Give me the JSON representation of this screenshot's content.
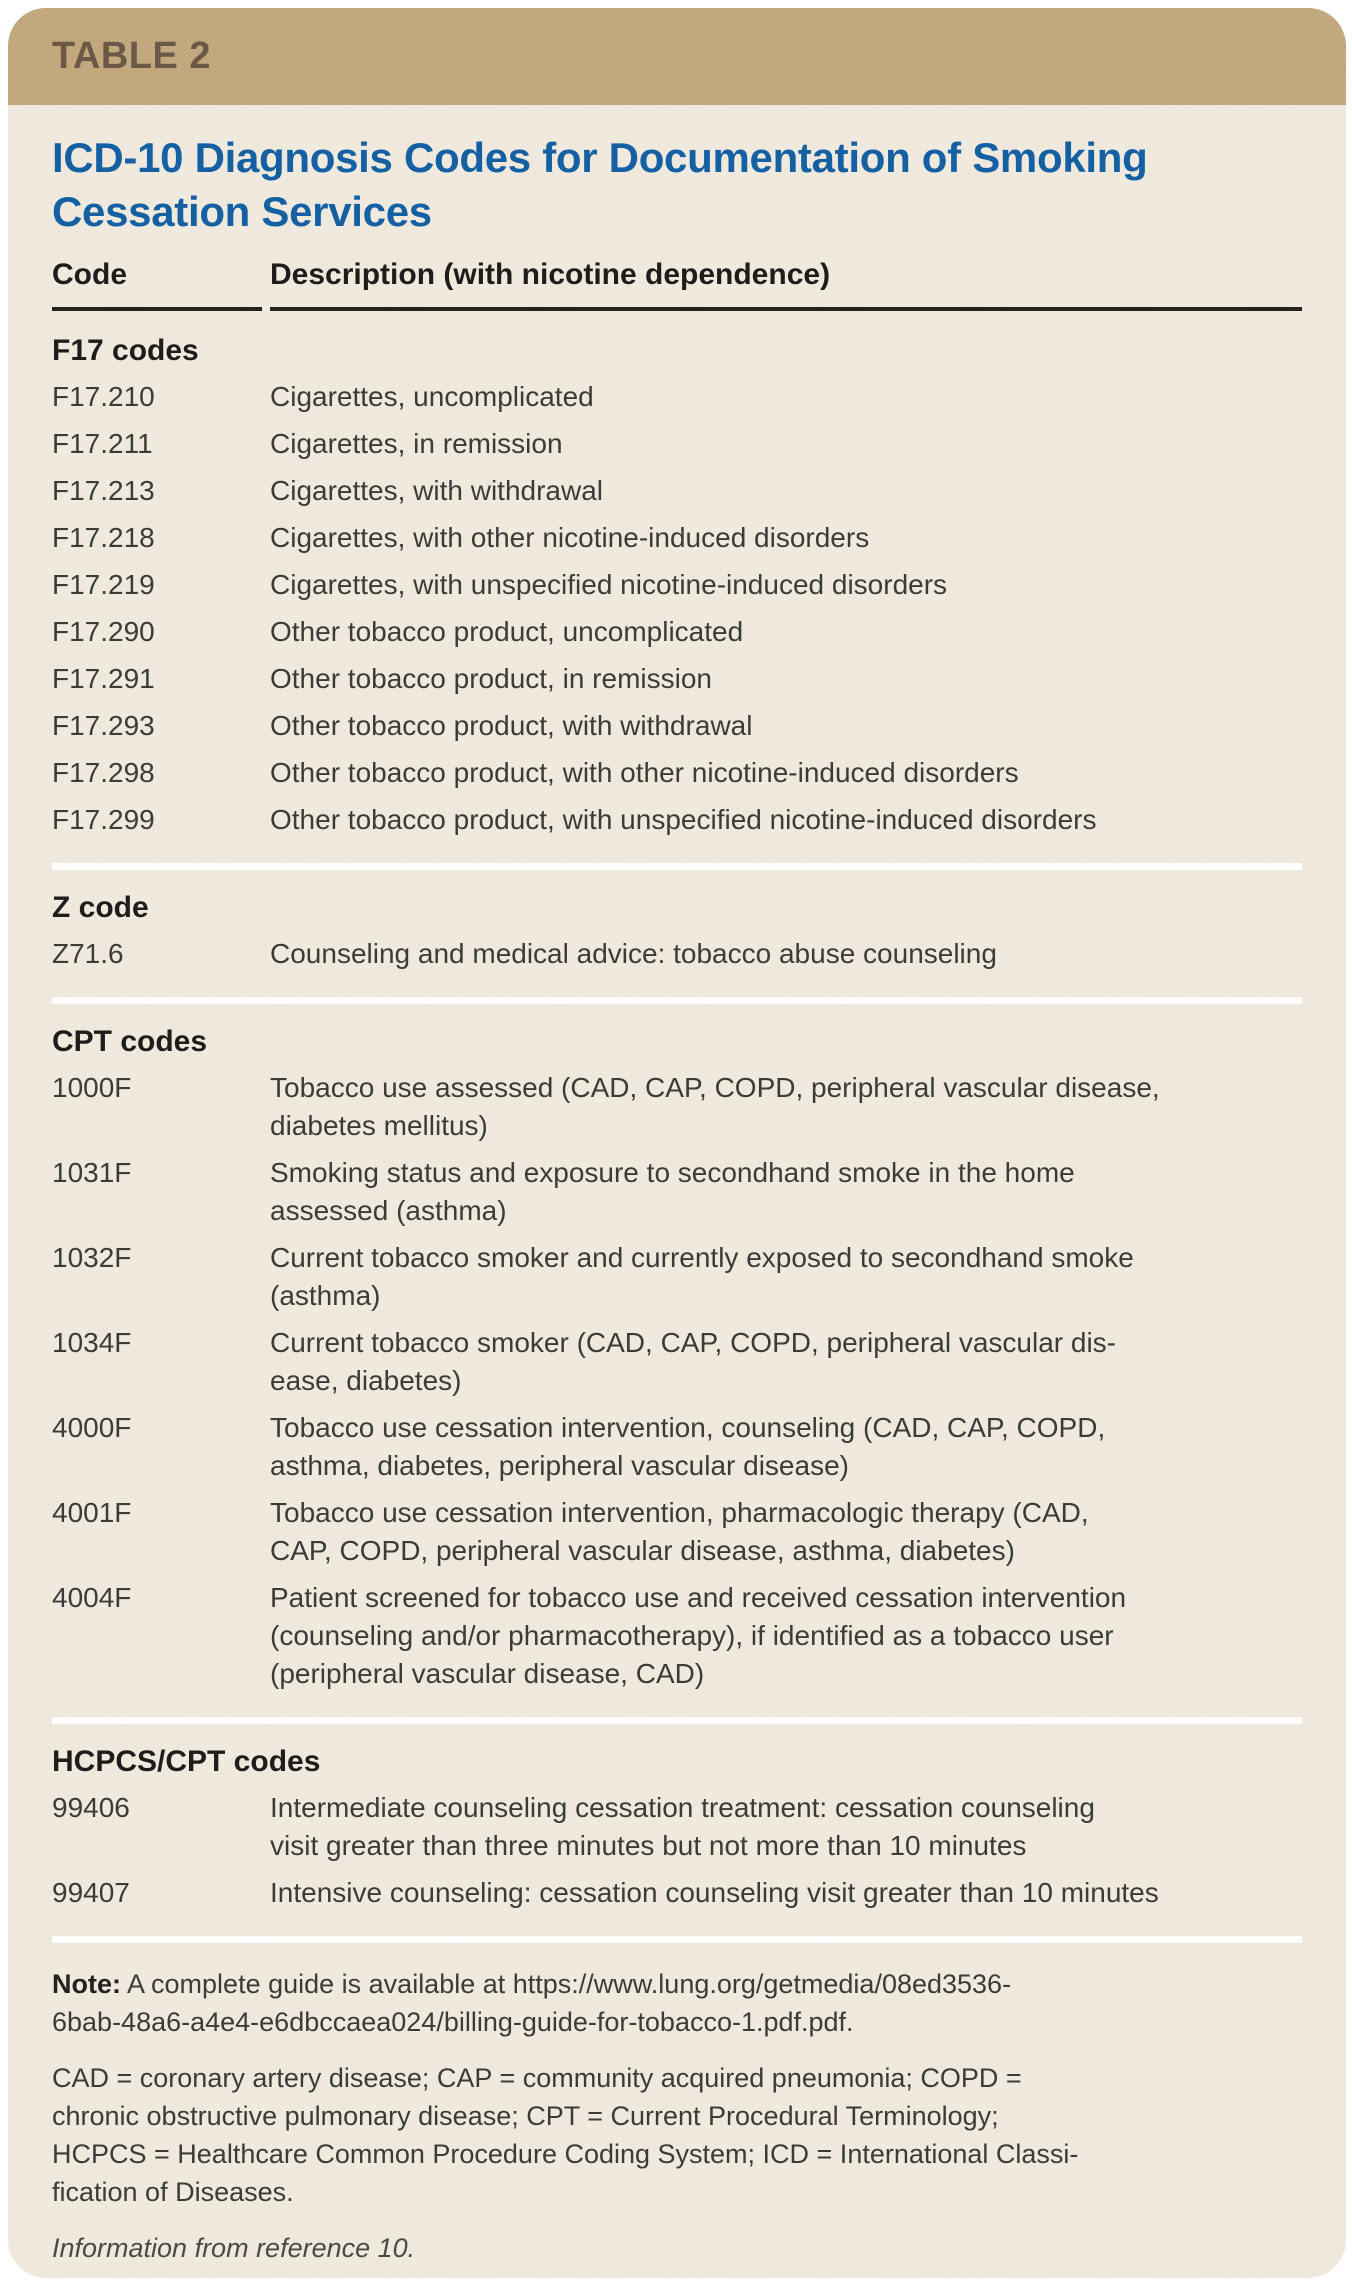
{
  "table_label": "TABLE 2",
  "title": "ICD-10 Diagnosis Codes for Documentation of Smoking\nCessation Services",
  "columns": {
    "code": "Code",
    "description": "Description (with nicotine dependence)"
  },
  "sections": [
    {
      "heading": "F17 codes",
      "rows": [
        {
          "code": "F17.210",
          "description": "Cigarettes, uncomplicated"
        },
        {
          "code": "F17.211",
          "description": "Cigarettes, in remission"
        },
        {
          "code": "F17.213",
          "description": "Cigarettes, with withdrawal"
        },
        {
          "code": "F17.218",
          "description": "Cigarettes, with other nicotine-induced disorders"
        },
        {
          "code": "F17.219",
          "description": "Cigarettes, with unspecified nicotine-induced disorders"
        },
        {
          "code": "F17.290",
          "description": "Other tobacco product, uncomplicated"
        },
        {
          "code": "F17.291",
          "description": "Other tobacco product, in remission"
        },
        {
          "code": "F17.293",
          "description": "Other tobacco product, with withdrawal"
        },
        {
          "code": "F17.298",
          "description": "Other tobacco product, with other nicotine-induced disorders"
        },
        {
          "code": "F17.299",
          "description": "Other tobacco product, with unspecified nicotine-induced disorders"
        }
      ]
    },
    {
      "heading": "Z code",
      "rows": [
        {
          "code": "Z71.6",
          "description": "Counseling and medical advice: tobacco abuse counseling"
        }
      ]
    },
    {
      "heading": "CPT codes",
      "rows": [
        {
          "code": "1000F",
          "description": "Tobacco use assessed (CAD, CAP, COPD, peripheral vascular disease,\ndiabetes mellitus)"
        },
        {
          "code": "1031F",
          "description": "Smoking status and exposure to secondhand smoke in the home\nassessed (asthma)"
        },
        {
          "code": "1032F",
          "description": "Current tobacco smoker and currently exposed to secondhand smoke\n(asthma)"
        },
        {
          "code": "1034F",
          "description": "Current tobacco smoker (CAD, CAP, COPD, peripheral vascular dis-\nease, diabetes)"
        },
        {
          "code": "4000F",
          "description": "Tobacco use cessation intervention, counseling (CAD, CAP, COPD,\nasthma, diabetes, peripheral vascular disease)"
        },
        {
          "code": "4001F",
          "description": "Tobacco use cessation intervention, pharmacologic therapy (CAD,\nCAP, COPD, peripheral vascular disease, asthma, diabetes)"
        },
        {
          "code": "4004F",
          "description": "Patient screened for tobacco use and received cessation intervention\n(counseling and/or pharmacotherapy), if identified as a tobacco user\n(peripheral vascular disease, CAD)"
        }
      ]
    },
    {
      "heading": "HCPCS/CPT codes",
      "rows": [
        {
          "code": "99406",
          "description": "Intermediate counseling cessation treatment: cessation counseling\nvisit greater than three minutes but not more than 10 minutes"
        },
        {
          "code": "99407",
          "description": "Intensive counseling: cessation counseling visit greater than 10 minutes"
        }
      ]
    }
  ],
  "footnotes": {
    "note_label": "Note:",
    "note_text": "A complete guide is available at https://www.lung.org/getmedia/08ed3536-\n6bab-48a6-a4e4-e6dbccaea024/billing-guide-for-tobacco-1.pdf.pdf.",
    "abbreviations": "CAD = coronary artery disease; CAP = community acquired pneumonia; COPD =\nchronic obstructive pulmonary disease; CPT = Current Procedural Terminology;\nHCPCS = Healthcare Common Procedure Coding System; ICD = International Classi-\nfication of Diseases.",
    "source": "Information from reference 10."
  },
  "colors": {
    "banner_tan": "#c5a97e",
    "banner_label_brown": "#6b5846",
    "card_background_cream": "#f1ebdf",
    "title_blue": "#1460a3",
    "body_text": "#3b3b38",
    "rule_black": "#26221f",
    "separator_white": "#ffffff"
  }
}
